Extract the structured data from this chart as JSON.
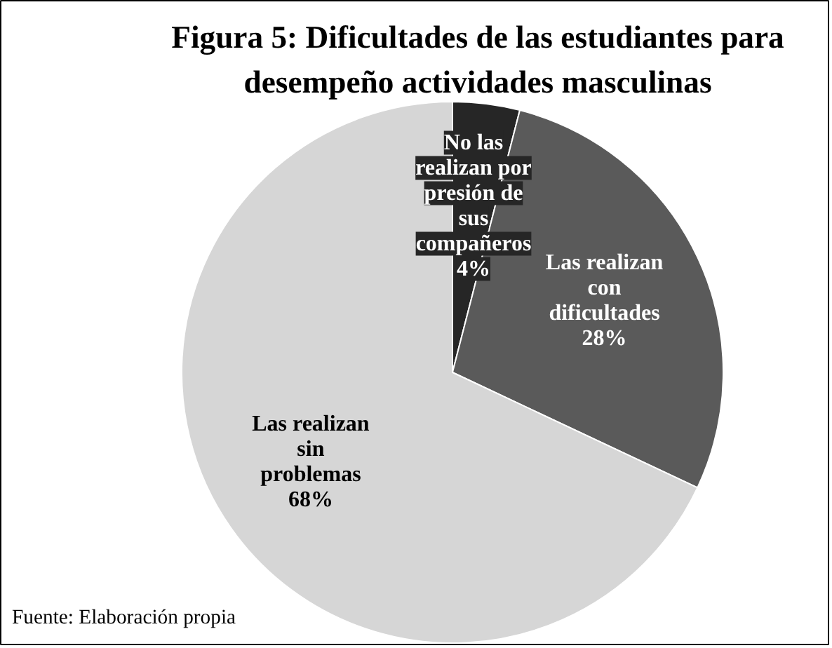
{
  "chart_data": {
    "type": "pie",
    "title": "Figura 5: Dificultades de las estudiantes para desempeño actividades masculinas",
    "categories": [
      "No las realizan por presión de sus compañeros",
      "Las realizan con dificultades",
      "Las realizan sin problemas"
    ],
    "values": [
      4,
      28,
      68
    ],
    "colors": [
      "#262626",
      "#5a5a5a",
      "#d6d6d6"
    ],
    "value_labels": [
      "4%",
      "28%",
      "68%"
    ],
    "annotations": [
      "Fuente: Elaboración propia"
    ]
  }
}
